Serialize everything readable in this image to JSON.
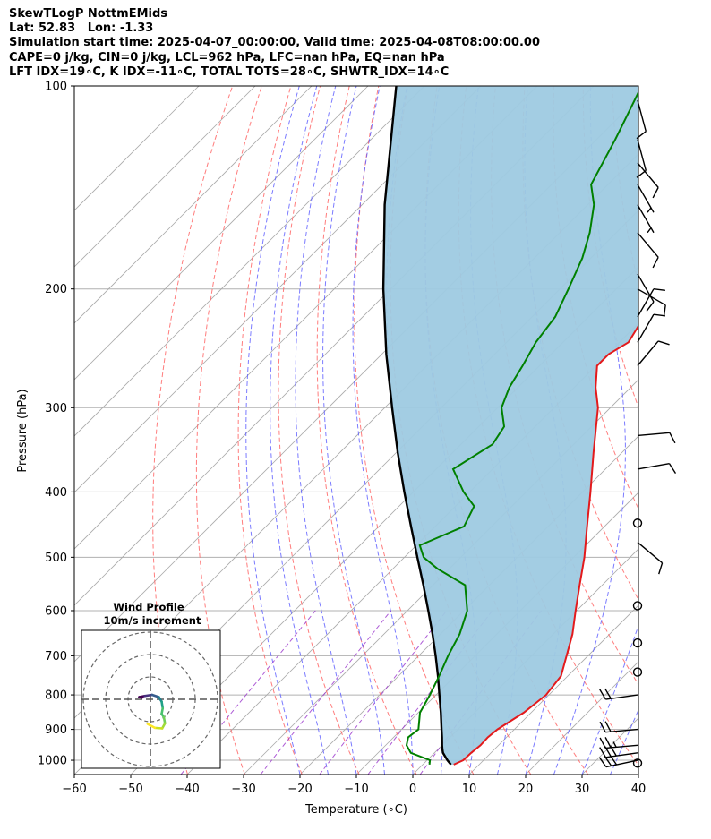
{
  "header": {
    "line1": "SkewTLogP NottmEMids",
    "line2": "Lat: 52.83   Lon: -1.33",
    "line3": "Simulation start time: 2025-04-07_00:00:00, Valid time: 2025-04-08T08:00:00.00",
    "line4": "CAPE=0 j/kg, CIN=0 j/kg, LCL=962 hPa, LFC=nan hPa, EQ=nan hPa",
    "line5": "LFT IDX=19∘C, K IDX=-11∘C, TOTAL TOTS=28∘C, SHWTR_IDX=14∘C"
  },
  "chart_data": {
    "type": "skewt-logp",
    "xlabel": "Temperature (∘C)",
    "ylabel": "Pressure (hPa)",
    "xlim": [
      -60,
      40
    ],
    "ylim": [
      1050,
      100
    ],
    "x_ticks": [
      -60,
      -50,
      -40,
      -30,
      -20,
      -10,
      0,
      10,
      20,
      30,
      40
    ],
    "y_ticks": [
      100,
      200,
      300,
      400,
      500,
      600,
      700,
      800,
      900,
      1000
    ],
    "grid": true,
    "colors": {
      "temperature": "#e31a1c",
      "dewpoint": "#008000",
      "parcel": "#000000",
      "cape_shade": "#9ecae1",
      "dry_adiabat": "#ff6666",
      "moist_adiabat": "#5a5aff",
      "mixing_ratio": "#9932cc",
      "isotherm": "#aaaaaa"
    },
    "temperature_profile": [
      {
        "p": 1015,
        "t": 5.5
      },
      {
        "p": 1000,
        "t": 6.4
      },
      {
        "p": 975,
        "t": 6.5
      },
      {
        "p": 950,
        "t": 6.8
      },
      {
        "p": 925,
        "t": 6.7
      },
      {
        "p": 900,
        "t": 7.0
      },
      {
        "p": 850,
        "t": 8.7
      },
      {
        "p": 800,
        "t": 9.5
      },
      {
        "p": 750,
        "t": 8.8
      },
      {
        "p": 700,
        "t": 6.2
      },
      {
        "p": 650,
        "t": 3.4
      },
      {
        "p": 600,
        "t": -0.2
      },
      {
        "p": 550,
        "t": -4.0
      },
      {
        "p": 500,
        "t": -8.1
      },
      {
        "p": 450,
        "t": -13.1
      },
      {
        "p": 400,
        "t": -18.6
      },
      {
        "p": 350,
        "t": -25.0
      },
      {
        "p": 300,
        "t": -32.2
      },
      {
        "p": 280,
        "t": -36.2
      },
      {
        "p": 260,
        "t": -39.8
      },
      {
        "p": 250,
        "t": -39.8
      },
      {
        "p": 240,
        "t": -38.4
      },
      {
        "p": 225,
        "t": -39.7
      },
      {
        "p": 210,
        "t": -43.3
      },
      {
        "p": 200,
        "t": -45.9
      },
      {
        "p": 175,
        "t": -52.5
      },
      {
        "p": 150,
        "t": -57.8
      },
      {
        "p": 125,
        "t": -65.2
      },
      {
        "p": 110,
        "t": -71.6
      },
      {
        "p": 100,
        "t": -75.7
      }
    ],
    "dewpoint_profile": [
      {
        "p": 1015,
        "t": 1.2
      },
      {
        "p": 1000,
        "t": 0.5
      },
      {
        "p": 975,
        "t": -4.2
      },
      {
        "p": 950,
        "t": -6.3
      },
      {
        "p": 925,
        "t": -7.4
      },
      {
        "p": 900,
        "t": -7.0
      },
      {
        "p": 850,
        "t": -9.7
      },
      {
        "p": 800,
        "t": -11.1
      },
      {
        "p": 750,
        "t": -12.8
      },
      {
        "p": 700,
        "t": -14.8
      },
      {
        "p": 650,
        "t": -16.6
      },
      {
        "p": 600,
        "t": -19.4
      },
      {
        "p": 550,
        "t": -24.3
      },
      {
        "p": 520,
        "t": -32.1
      },
      {
        "p": 500,
        "t": -36.6
      },
      {
        "p": 480,
        "t": -39.4
      },
      {
        "p": 450,
        "t": -34.9
      },
      {
        "p": 420,
        "t": -36.7
      },
      {
        "p": 400,
        "t": -41.1
      },
      {
        "p": 370,
        "t": -47.0
      },
      {
        "p": 340,
        "t": -44.4
      },
      {
        "p": 320,
        "t": -45.5
      },
      {
        "p": 300,
        "t": -49.3
      },
      {
        "p": 280,
        "t": -51.5
      },
      {
        "p": 260,
        "t": -53.0
      },
      {
        "p": 240,
        "t": -54.8
      },
      {
        "p": 220,
        "t": -55.9
      },
      {
        "p": 200,
        "t": -58.5
      },
      {
        "p": 180,
        "t": -61.5
      },
      {
        "p": 165,
        "t": -64.7
      },
      {
        "p": 150,
        "t": -68.9
      },
      {
        "p": 140,
        "t": -73.0
      },
      {
        "p": 120,
        "t": -76.7
      },
      {
        "p": 100,
        "t": -81.5
      }
    ],
    "parcel_profile": [
      {
        "p": 1015,
        "t": 5.0
      },
      {
        "p": 1000,
        "t": 3.6
      },
      {
        "p": 975,
        "t": 1.5
      },
      {
        "p": 962,
        "t": 0.7
      },
      {
        "p": 950,
        "t": 0.0
      },
      {
        "p": 925,
        "t": -1.4
      },
      {
        "p": 900,
        "t": -2.9
      },
      {
        "p": 850,
        "t": -6.0
      },
      {
        "p": 800,
        "t": -9.4
      },
      {
        "p": 750,
        "t": -13.0
      },
      {
        "p": 700,
        "t": -17.0
      },
      {
        "p": 650,
        "t": -21.4
      },
      {
        "p": 600,
        "t": -26.3
      },
      {
        "p": 550,
        "t": -31.7
      },
      {
        "p": 500,
        "t": -37.7
      },
      {
        "p": 450,
        "t": -44.3
      },
      {
        "p": 400,
        "t": -51.6
      },
      {
        "p": 350,
        "t": -59.7
      },
      {
        "p": 300,
        "t": -68.7
      },
      {
        "p": 250,
        "t": -79.2
      },
      {
        "p": 200,
        "t": -91.3
      },
      {
        "p": 150,
        "t": -106.0
      },
      {
        "p": 100,
        "t": -125.0
      }
    ],
    "wind_barbs": [
      {
        "p": 1000,
        "speed_kt": 30,
        "dir_deg": 258
      },
      {
        "p": 975,
        "speed_kt": 30,
        "dir_deg": 262
      },
      {
        "p": 950,
        "speed_kt": 25,
        "dir_deg": 265
      },
      {
        "p": 900,
        "speed_kt": 20,
        "dir_deg": 265
      },
      {
        "p": 800,
        "speed_kt": 20,
        "dir_deg": 262
      },
      {
        "p": 1010,
        "speed_kt": 0,
        "dir_deg": 0
      },
      {
        "p": 740,
        "speed_kt": 0,
        "dir_deg": 0
      },
      {
        "p": 670,
        "speed_kt": 0,
        "dir_deg": 0
      },
      {
        "p": 590,
        "speed_kt": 0,
        "dir_deg": 0
      },
      {
        "p": 445,
        "speed_kt": 0,
        "dir_deg": 0
      },
      {
        "p": 475,
        "speed_kt": 10,
        "dir_deg": 130
      },
      {
        "p": 370,
        "speed_kt": 10,
        "dir_deg": 80
      },
      {
        "p": 330,
        "speed_kt": 10,
        "dir_deg": 85
      },
      {
        "p": 260,
        "speed_kt": 10,
        "dir_deg": 40
      },
      {
        "p": 240,
        "speed_kt": 10,
        "dir_deg": 30
      },
      {
        "p": 220,
        "speed_kt": 10,
        "dir_deg": 30
      },
      {
        "p": 200,
        "speed_kt": 10,
        "dir_deg": 120
      },
      {
        "p": 190,
        "speed_kt": 10,
        "dir_deg": 150
      },
      {
        "p": 165,
        "speed_kt": 10,
        "dir_deg": 140
      },
      {
        "p": 150,
        "speed_kt": 5,
        "dir_deg": 150
      },
      {
        "p": 140,
        "speed_kt": 5,
        "dir_deg": 150
      },
      {
        "p": 130,
        "speed_kt": 10,
        "dir_deg": 140
      },
      {
        "p": 120,
        "speed_kt": 10,
        "dir_deg": 165
      },
      {
        "p": 105,
        "speed_kt": 10,
        "dir_deg": 165
      }
    ],
    "inset": {
      "title_line1": "Wind Profile",
      "title_line2": "10m/s increment",
      "rings_ms": [
        10,
        20,
        30
      ],
      "hodograph_uv": [
        [
          -1.5,
          0.3
        ],
        [
          -2.0,
          0.4
        ],
        [
          -1.0,
          0.6
        ],
        [
          0.3,
          0.8
        ],
        [
          1.5,
          0.4
        ],
        [
          2.0,
          -0.4
        ],
        [
          2.2,
          -1.6
        ],
        [
          2.0,
          -2.6
        ],
        [
          2.4,
          -3.2
        ],
        [
          2.6,
          -4.3
        ],
        [
          2.1,
          -5.2
        ],
        [
          0.8,
          -5.1
        ],
        [
          -0.5,
          -4.4
        ]
      ]
    }
  }
}
